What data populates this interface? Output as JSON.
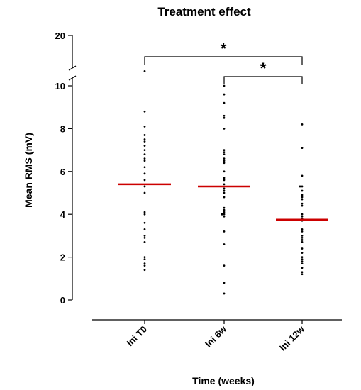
{
  "chart_data": {
    "type": "scatter",
    "title": "Treatment effect",
    "xlabel": "Time (weeks)",
    "ylabel": "Mean RMS (mV)",
    "ylim": [
      0,
      20
    ],
    "y_axis_break": [
      10,
      20
    ],
    "yticks": [
      "0",
      "2",
      "4",
      "6",
      "8",
      "10",
      "20"
    ],
    "categories": [
      "Ini T0",
      "Ini 6w",
      "Ini 12w"
    ],
    "mean_color": "#cc0000",
    "series": [
      {
        "category": "Ini T0",
        "mean": 5.4,
        "values": [
          12.9,
          8.8,
          8.1,
          7.7,
          7.5,
          7.4,
          7.2,
          7.0,
          6.8,
          6.6,
          6.5,
          6.2,
          5.9,
          5.6,
          5.3,
          5.0,
          4.1,
          4.0,
          3.6,
          3.3,
          3.0,
          2.9,
          2.7,
          2.0,
          1.9,
          1.7,
          1.6,
          1.4
        ]
      },
      {
        "category": "Ini 6w",
        "mean": 5.3,
        "values": [
          10.0,
          9.6,
          9.2,
          8.6,
          8.5,
          8.0,
          7.0,
          6.9,
          6.8,
          6.6,
          6.5,
          6.4,
          6.0,
          5.7,
          5.6,
          5.4,
          5.2,
          5.1,
          5.0,
          4.8,
          4.3,
          4.2,
          4.1,
          4.0,
          4.0,
          3.9,
          3.2,
          2.6,
          1.6,
          0.8,
          0.3
        ]
      },
      {
        "category": "Ini 12w",
        "mean": 3.75,
        "values": [
          8.2,
          7.1,
          5.8,
          5.3,
          5.3,
          5.1,
          4.9,
          4.8,
          4.7,
          4.5,
          4.4,
          4.0,
          3.9,
          3.8,
          3.7,
          3.3,
          3.2,
          3.0,
          2.9,
          2.8,
          2.7,
          2.4,
          2.2,
          2.0,
          1.9,
          1.8,
          1.7,
          1.5,
          1.3,
          1.2
        ]
      }
    ],
    "significance": [
      {
        "from": "Ini T0",
        "to": "Ini 12w",
        "label": "*"
      },
      {
        "from": "Ini 6w",
        "to": "Ini 12w",
        "label": "*"
      }
    ]
  }
}
